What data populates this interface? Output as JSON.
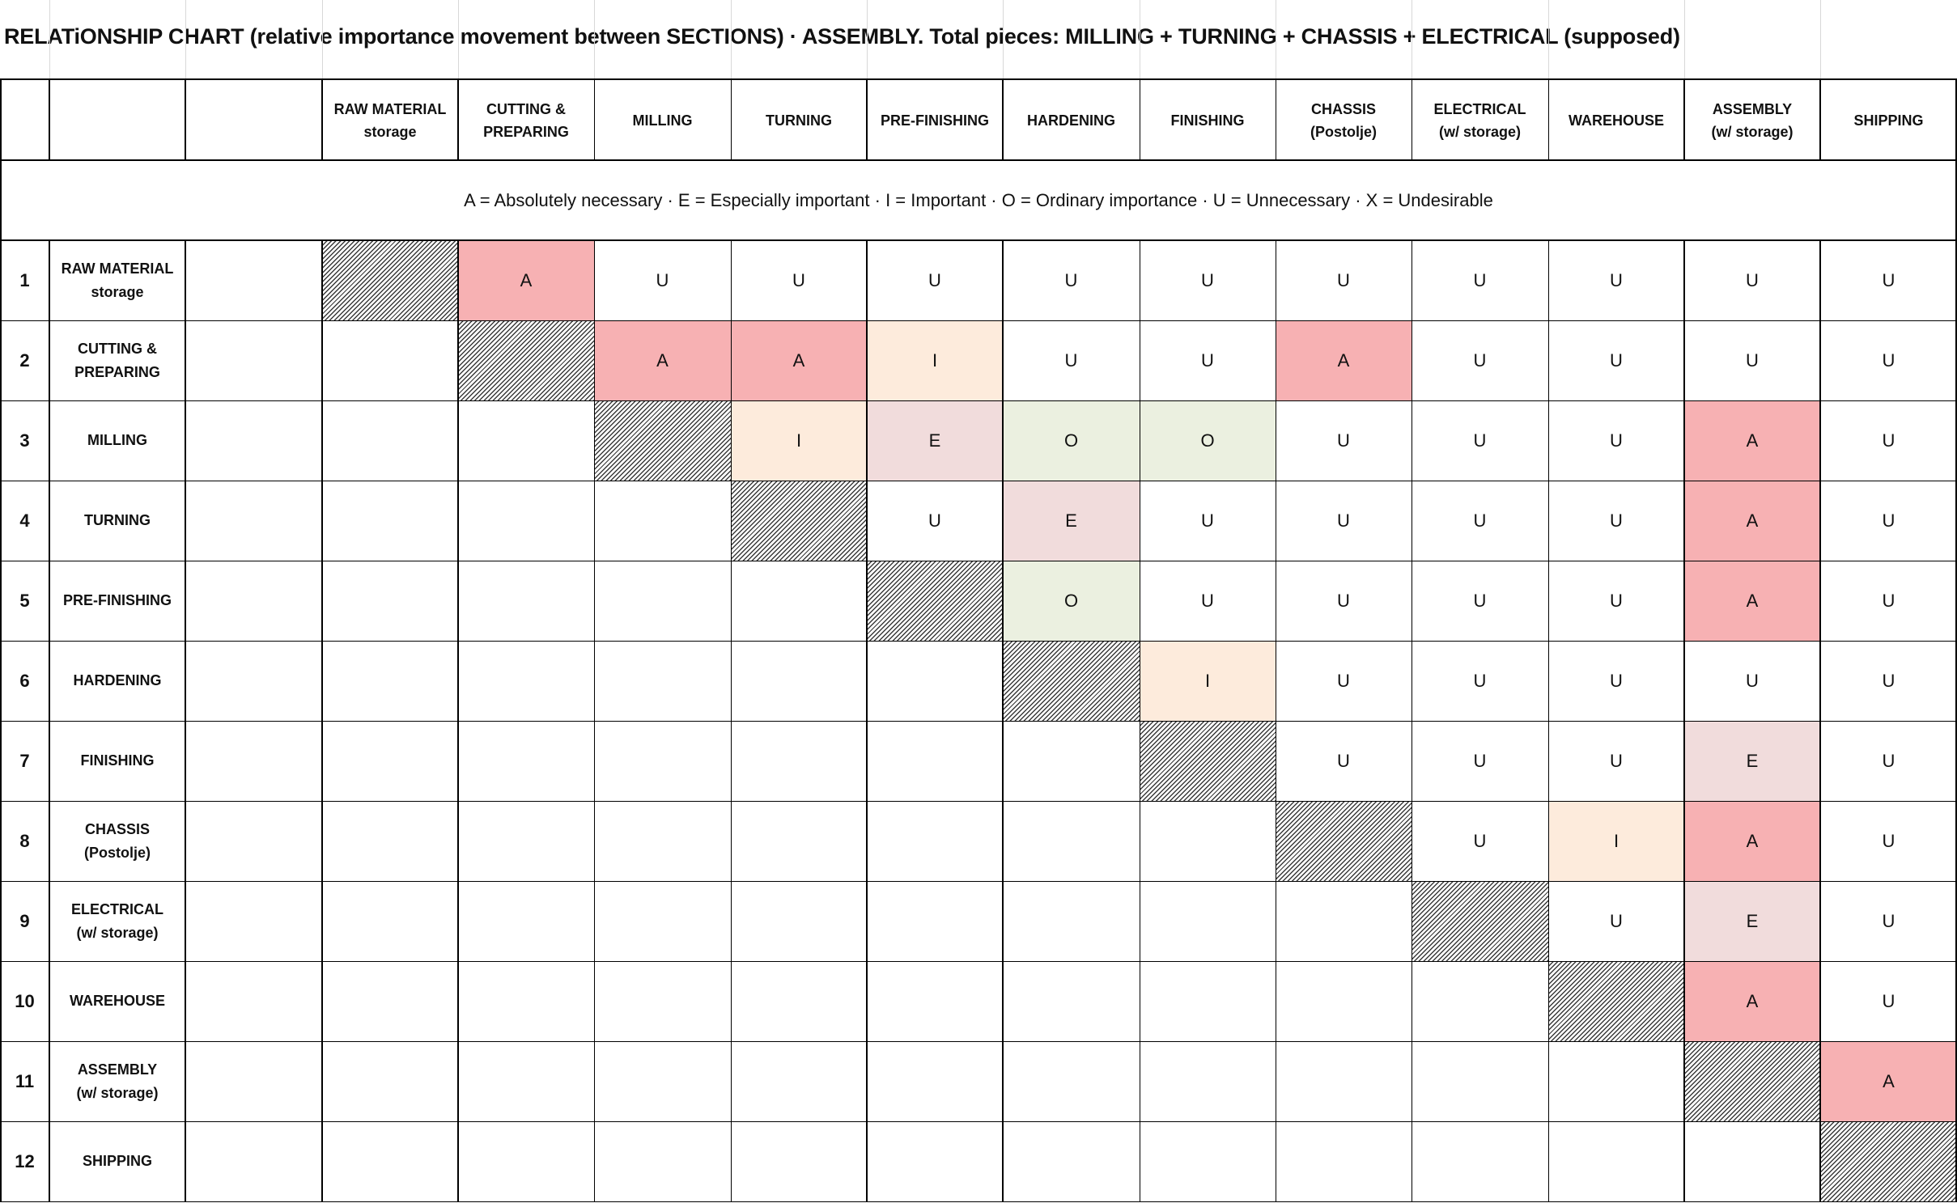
{
  "title": "RELATiONSHIP CHART (relative importance movement between SECTIONS)   ·   ASSEMBLY. Total pieces: MILLING + TURNING + CHASSIS + ELECTRICAL (supposed)",
  "legend": "A = Absolutely necessary  ·  E = Especially important  ·  I = Important  ·  O = Ordinary importance  ·  U = Unnecessary  ·  X = Undesirable",
  "columns": [
    [
      "RAW MATERIAL",
      "storage"
    ],
    [
      "CUTTING &",
      "PREPARING"
    ],
    [
      "MILLING"
    ],
    [
      "TURNING"
    ],
    [
      "PRE-FINISHING"
    ],
    [
      "HARDENING"
    ],
    [
      "FINISHING"
    ],
    [
      "CHASSIS",
      "(Postolje)"
    ],
    [
      "ELECTRICAL",
      "(w/ storage)"
    ],
    [
      "WAREHOUSE"
    ],
    [
      "ASSEMBLY",
      "(w/ storage)"
    ],
    [
      "SHIPPING"
    ]
  ],
  "rows": [
    {
      "num": "1",
      "name": [
        "RAW MATERIAL",
        "storage"
      ],
      "values": [
        "",
        "A",
        "U",
        "U",
        "U",
        "U",
        "U",
        "U",
        "U",
        "U",
        "U",
        "U"
      ]
    },
    {
      "num": "2",
      "name": [
        "CUTTING &",
        "PREPARING"
      ],
      "values": [
        "",
        "",
        "A",
        "A",
        "I",
        "U",
        "U",
        "A",
        "U",
        "U",
        "U",
        "U"
      ]
    },
    {
      "num": "3",
      "name": [
        "MILLING"
      ],
      "values": [
        "",
        "",
        "",
        "I",
        "E",
        "O",
        "O",
        "U",
        "U",
        "U",
        "A",
        "U"
      ]
    },
    {
      "num": "4",
      "name": [
        "TURNING"
      ],
      "values": [
        "",
        "",
        "",
        "",
        "U",
        "E",
        "U",
        "U",
        "U",
        "U",
        "A",
        "U"
      ]
    },
    {
      "num": "5",
      "name": [
        "PRE-FINISHING"
      ],
      "values": [
        "",
        "",
        "",
        "",
        "",
        "O",
        "U",
        "U",
        "U",
        "U",
        "A",
        "U"
      ]
    },
    {
      "num": "6",
      "name": [
        "HARDENING"
      ],
      "values": [
        "",
        "",
        "",
        "",
        "",
        "",
        "I",
        "U",
        "U",
        "U",
        "U",
        "U"
      ]
    },
    {
      "num": "7",
      "name": [
        "FINISHING"
      ],
      "values": [
        "",
        "",
        "",
        "",
        "",
        "",
        "",
        "U",
        "U",
        "U",
        "E",
        "U"
      ]
    },
    {
      "num": "8",
      "name": [
        "CHASSIS",
        "(Postolje)"
      ],
      "values": [
        "",
        "",
        "",
        "",
        "",
        "",
        "",
        "",
        "U",
        "I",
        "A",
        "U"
      ]
    },
    {
      "num": "9",
      "name": [
        "ELECTRICAL",
        "(w/ storage)"
      ],
      "values": [
        "",
        "",
        "",
        "",
        "",
        "",
        "",
        "",
        "",
        "U",
        "E",
        "U"
      ]
    },
    {
      "num": "10",
      "name": [
        "WAREHOUSE"
      ],
      "values": [
        "",
        "",
        "",
        "",
        "",
        "",
        "",
        "",
        "",
        "",
        "A",
        "U"
      ]
    },
    {
      "num": "11",
      "name": [
        "ASSEMBLY",
        "(w/ storage)"
      ],
      "values": [
        "",
        "",
        "",
        "",
        "",
        "",
        "",
        "",
        "",
        "",
        "",
        "A"
      ]
    },
    {
      "num": "12",
      "name": [
        "SHIPPING"
      ],
      "values": [
        "",
        "",
        "",
        "",
        "",
        "",
        "",
        "",
        "",
        "",
        "",
        ""
      ]
    }
  ],
  "colors": {
    "A": "#f7b1b3",
    "E": "#f1dcdc",
    "I": "#fdebdc",
    "O": "#ebf0e0",
    "U": "#ffffff"
  }
}
